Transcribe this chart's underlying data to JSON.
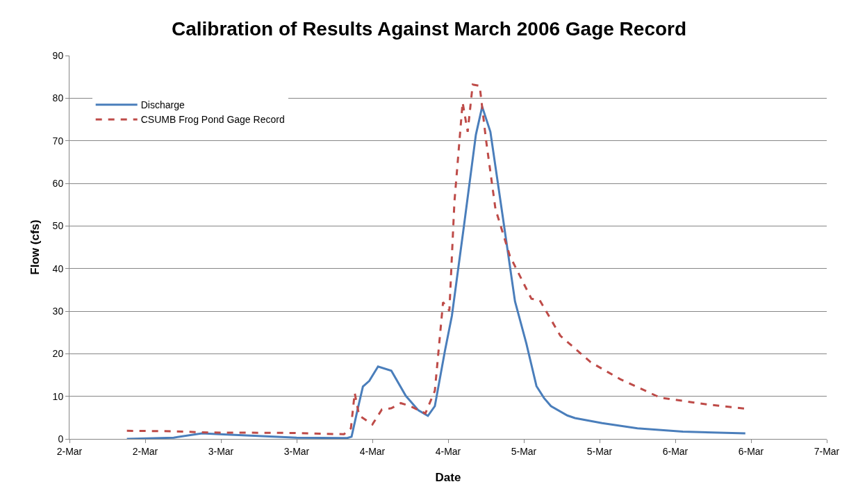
{
  "chart_data": {
    "type": "line",
    "title": "Calibration of Results Against March 2006 Gage Record",
    "xlabel": "Date",
    "ylabel": "Flow (cfs)",
    "xlim": [
      "2006-03-02",
      "2006-03-07"
    ],
    "xticks": [
      {
        "value": "2006-03-02",
        "label": "2-Mar"
      },
      {
        "value": "2006-03-02T12:00",
        "label": "2-Mar"
      },
      {
        "value": "2006-03-03",
        "label": "3-Mar"
      },
      {
        "value": "2006-03-03T12:00",
        "label": "3-Mar"
      },
      {
        "value": "2006-03-04",
        "label": "4-Mar"
      },
      {
        "value": "2006-03-04T12:00",
        "label": "4-Mar"
      },
      {
        "value": "2006-03-05",
        "label": "5-Mar"
      },
      {
        "value": "2006-03-05T12:00",
        "label": "5-Mar"
      },
      {
        "value": "2006-03-06",
        "label": "6-Mar"
      },
      {
        "value": "2006-03-06T12:00",
        "label": "6-Mar"
      },
      {
        "value": "2006-03-07",
        "label": "7-Mar"
      }
    ],
    "ylim": [
      0,
      90
    ],
    "yticks": [
      0,
      10,
      20,
      30,
      40,
      50,
      60,
      70,
      80,
      90
    ],
    "grid": "y",
    "legend": "top left",
    "marker": "none",
    "series": [
      {
        "name": "Discharge",
        "color": "#4a7ebb",
        "line_style": "solid",
        "x": [
          "2006-03-02T09:06",
          "2006-03-02T16:30",
          "2006-03-02T21:00",
          "2006-03-03T01:00",
          "2006-03-03T09:00",
          "2006-03-03T12:00",
          "2006-03-03T20:00",
          "2006-03-03T20:42",
          "2006-03-03T21:42",
          "2006-03-03T22:30",
          "2006-03-03T23:30",
          "2006-03-04T00:54",
          "2006-03-04T03:00",
          "2006-03-04T05:18",
          "2006-03-04T07:18",
          "2006-03-04T08:48",
          "2006-03-04T09:54",
          "2006-03-04T11:30",
          "2006-03-04T12:36",
          "2006-03-04T14:30",
          "2006-03-04T16:24",
          "2006-03-04T17:24",
          "2006-03-04T18:42",
          "2006-03-04T20:36",
          "2006-03-04T22:36",
          "2006-03-05T00:24",
          "2006-03-05T02:00",
          "2006-03-05T03:12",
          "2006-03-05T04:18",
          "2006-03-05T06:54",
          "2006-03-05T08:06",
          "2006-03-05T12:24",
          "2006-03-05T18:00",
          "2006-03-06T01:12",
          "2006-03-06T11:06"
        ],
        "values": [
          0,
          0.3,
          1.3,
          1.0,
          0.5,
          0.3,
          0.2,
          0.5,
          7.2,
          12.3,
          13.6,
          17.0,
          16.0,
          10.1,
          6.7,
          5.4,
          7.7,
          20.7,
          28.9,
          49.9,
          71.4,
          78.0,
          72.1,
          52.8,
          32.3,
          22.4,
          12.4,
          9.6,
          7.7,
          5.5,
          4.9,
          3.7,
          2.5,
          1.7,
          1.3
        ]
      },
      {
        "name": "CSUMB Frog Pond Gage Record",
        "color": "#be4b48",
        "line_style": "dashed",
        "x": [
          "2006-03-02T09:06",
          "2006-03-02T16:30",
          "2006-03-02T22:00",
          "2006-03-03T11:00",
          "2006-03-03T19:30",
          "2006-03-03T20:36",
          "2006-03-03T21:12",
          "2006-03-03T21:54",
          "2006-03-04T00:00",
          "2006-03-04T01:30",
          "2006-03-04T03:00",
          "2006-03-04T04:30",
          "2006-03-04T06:00",
          "2006-03-04T08:24",
          "2006-03-04T09:54",
          "2006-03-04T11:12",
          "2006-03-04T12:12",
          "2006-03-04T13:00",
          "2006-03-04T14:18",
          "2006-03-04T15:06",
          "2006-03-04T15:54",
          "2006-03-04T17:00",
          "2006-03-04T18:00",
          "2006-03-04T19:30",
          "2006-03-04T21:48",
          "2006-03-05T01:12",
          "2006-03-05T02:30",
          "2006-03-05T05:48",
          "2006-03-05T10:36",
          "2006-03-05T15:18",
          "2006-03-05T21:36",
          "2006-03-06T05:00",
          "2006-03-06T11:06"
        ],
        "values": [
          1.9,
          1.8,
          1.5,
          1.4,
          1.1,
          2.5,
          10.8,
          5.5,
          3.4,
          6.9,
          7.2,
          8.4,
          7.7,
          6.0,
          11.3,
          32.1,
          30.1,
          55.6,
          79.0,
          72.1,
          83.2,
          82.9,
          70.3,
          54.0,
          42.9,
          32.9,
          32.6,
          24.2,
          18.0,
          14.0,
          9.7,
          8.1,
          7.1
        ]
      }
    ]
  }
}
